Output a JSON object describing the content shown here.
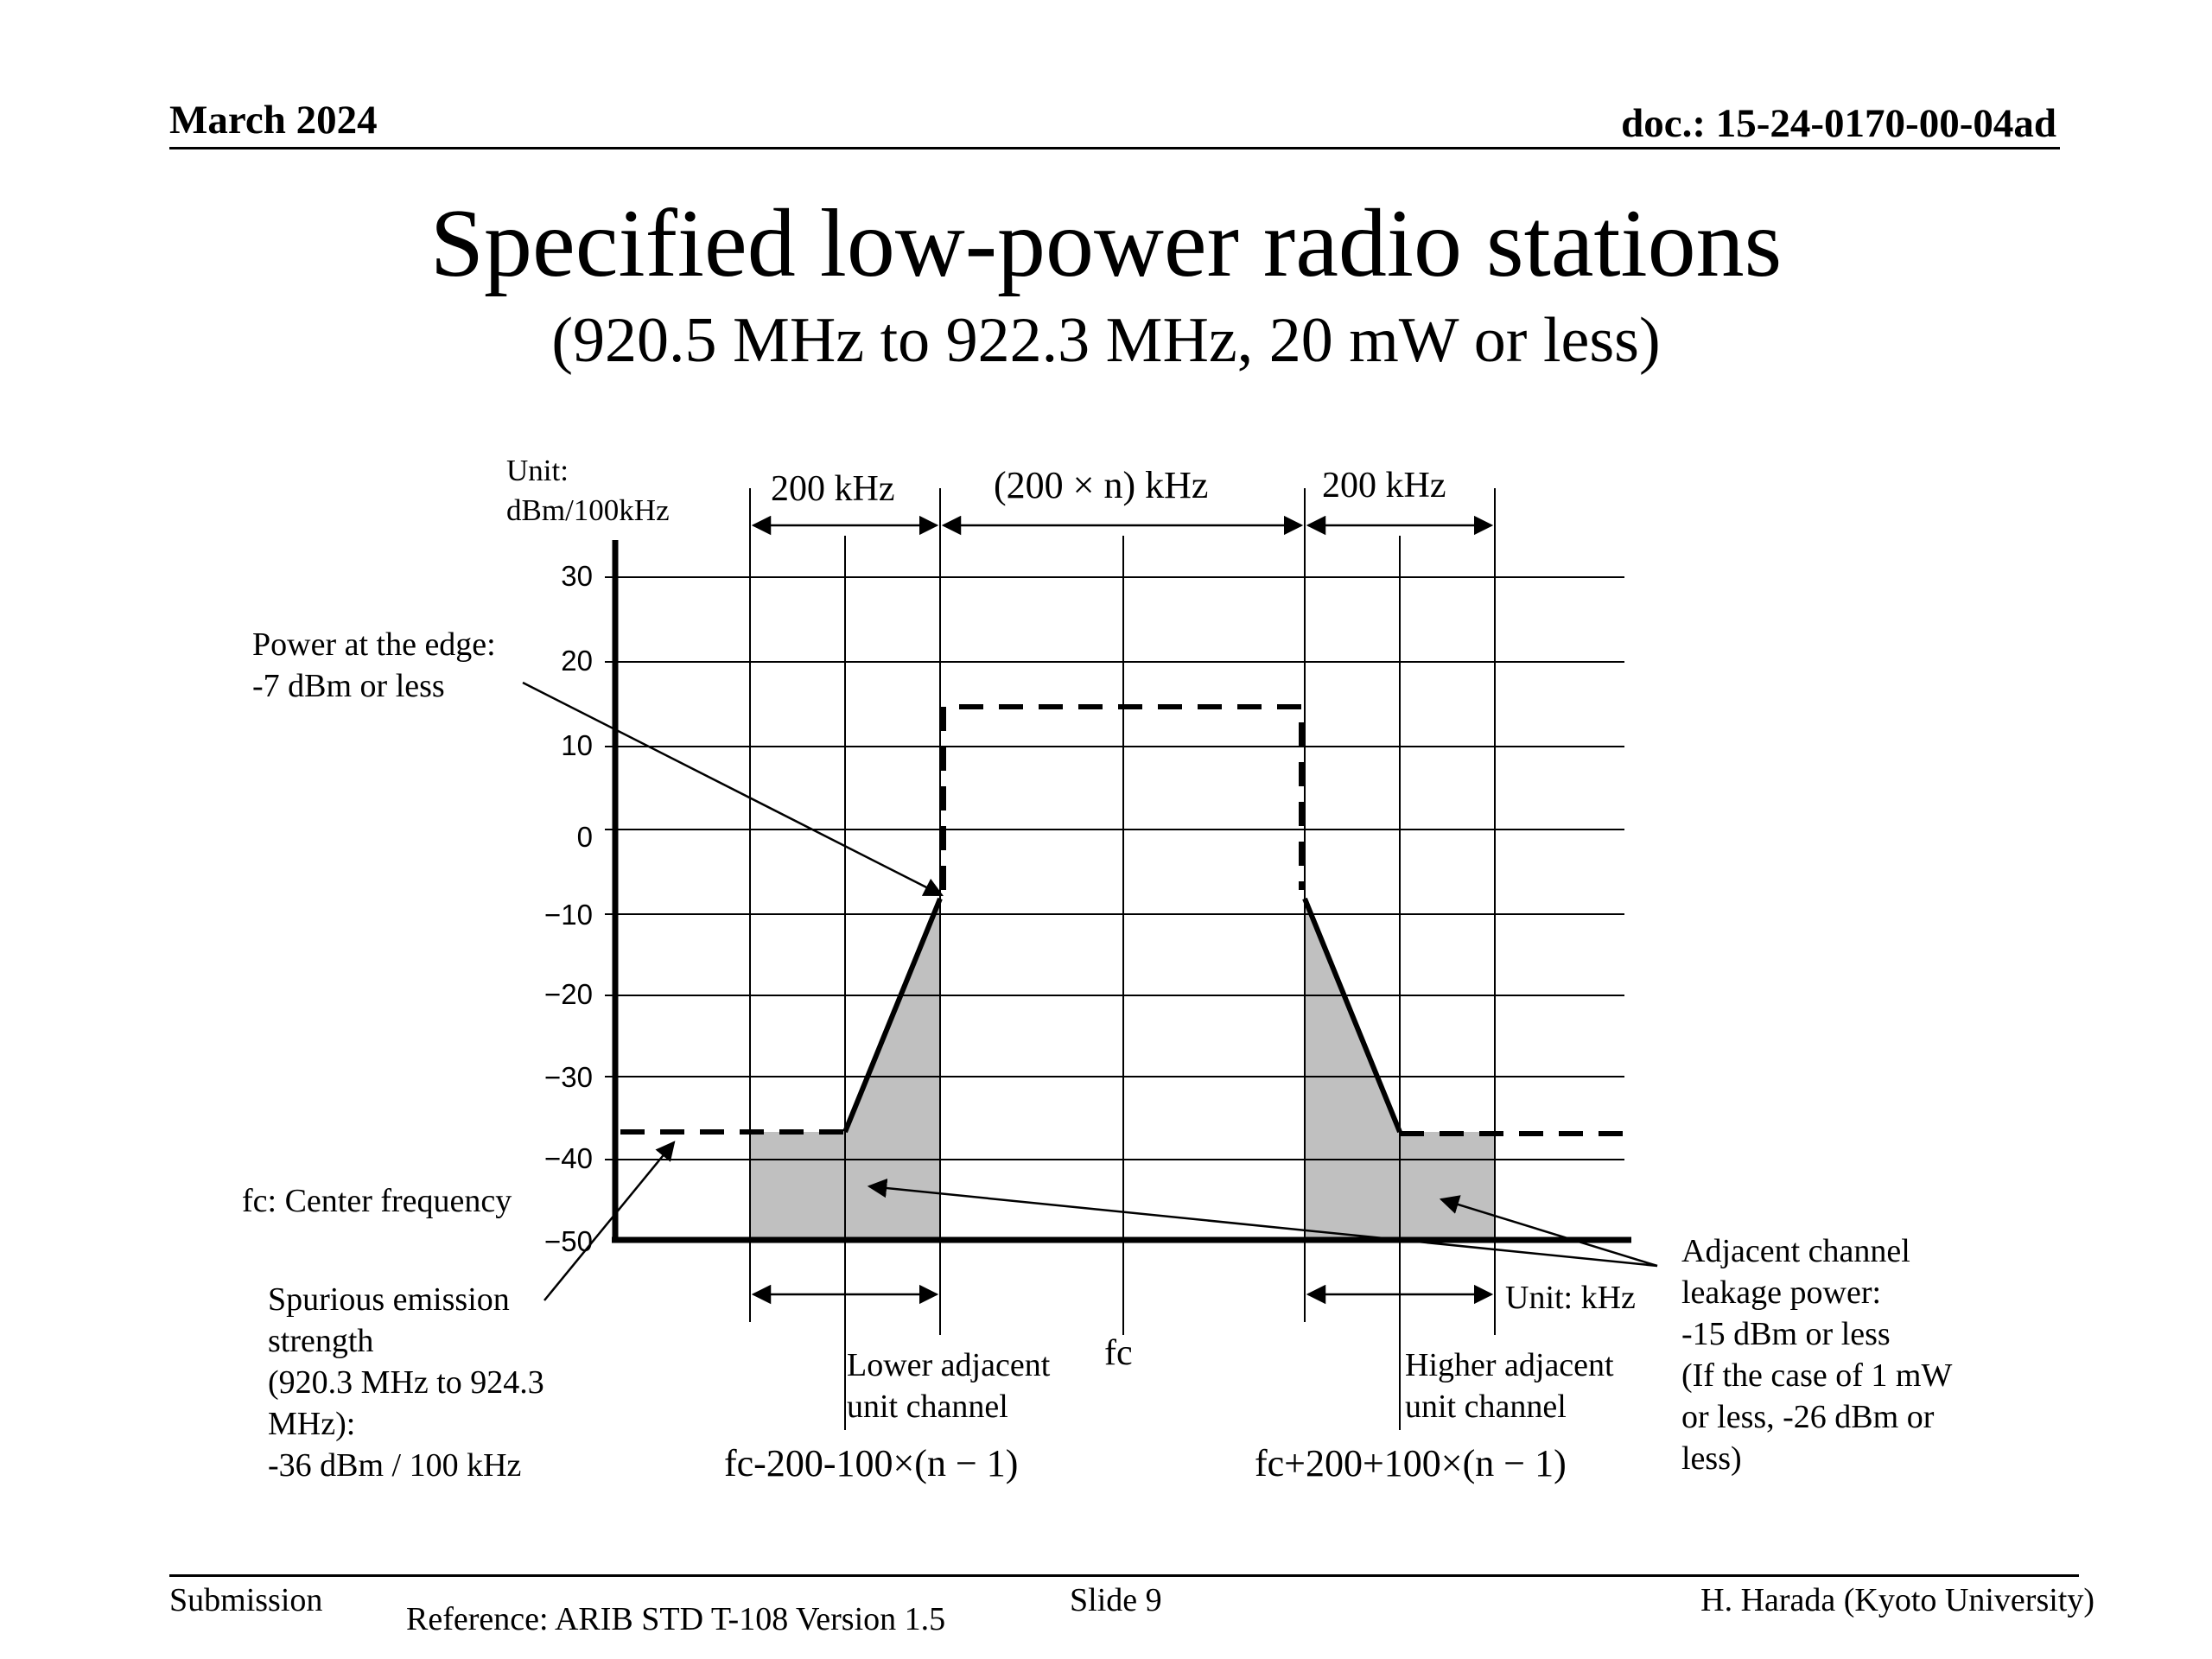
{
  "header": {
    "date": "March 2024",
    "doc_id": "doc.: 15-24-0170-00-04ad"
  },
  "slide": {
    "title": "Specified low-power radio stations",
    "subtitle": "(920.5 MHz to 922.3 MHz, 20 mW or less)"
  },
  "figure": {
    "unit_label": "Unit:\ndBm/100kHz",
    "top_span_left": "200 kHz",
    "top_span_middle": "(200 × n) kHz",
    "top_span_right": "200 kHz",
    "power_edge_note": "Power at the edge:\n-7 dBm or less",
    "fc_note": "fc: Center frequency",
    "spurious_note": "Spurious emission\nstrength\n(920.3 MHz to 924.3\nMHz):\n-36 dBm / 100 kHz",
    "lower_channel": "Lower adjacent\nunit channel",
    "higher_channel": "Higher adjacent\nunit channel",
    "fc_label": "fc",
    "unit_khz": "Unit: kHz",
    "adjacent_note": "Adjacent channel\nleakage power:\n-15 dBm or less\n(If the case of 1 mW\nor less, -26 dBm or\nless)",
    "lower_formula": "fc-200-100×(n − 1)",
    "higher_formula": "fc+200+100×(n − 1)",
    "y_ticks": [
      "30",
      "20",
      "10",
      "0",
      "−10",
      "−20",
      "−30",
      "−40",
      "−50"
    ]
  },
  "chart_data": {
    "type": "area",
    "ylabel": "Unit: dBm/100kHz",
    "ylim": [
      -50,
      30
    ],
    "y_ticks": [
      30,
      20,
      10,
      0,
      -10,
      -20,
      -30,
      -40,
      -50
    ],
    "x_unit": "kHz",
    "series": [
      {
        "name": "Spurious emission strength",
        "values": [
          -36,
          -36
        ]
      },
      {
        "name": "Power at the edge",
        "values": [
          -7
        ]
      },
      {
        "name": "Adjacent channel leakage power",
        "values": [
          -15
        ]
      }
    ]
  },
  "footer": {
    "submission": "Submission",
    "reference": "Reference: ARIB STD T-108 Version 1.5",
    "slide_number": "Slide 9",
    "author": "H. Harada (Kyoto University)"
  }
}
